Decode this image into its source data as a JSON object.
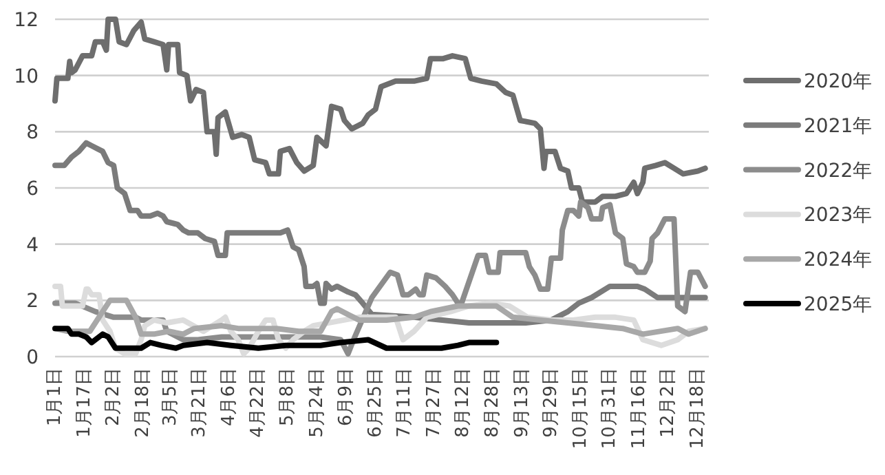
{
  "chart_data": {
    "type": "line",
    "xlim": [
      "--01-01",
      "--12-24"
    ],
    "ylim": [
      0,
      12
    ],
    "yticks": [
      0,
      2,
      4,
      6,
      8,
      10,
      12
    ],
    "xticks": [
      {
        "value": "--01-01",
        "label": "1月1日"
      },
      {
        "value": "--01-17",
        "label": "1月17日"
      },
      {
        "value": "--02-02",
        "label": "2月2日"
      },
      {
        "value": "--02-18",
        "label": "2月18日"
      },
      {
        "value": "--03-05",
        "label": "3月5日"
      },
      {
        "value": "--03-21",
        "label": "3月21日"
      },
      {
        "value": "--04-06",
        "label": "4月6日"
      },
      {
        "value": "--04-22",
        "label": "4月22日"
      },
      {
        "value": "--05-08",
        "label": "5月8日"
      },
      {
        "value": "--05-24",
        "label": "5月24日"
      },
      {
        "value": "--06-09",
        "label": "6月9日"
      },
      {
        "value": "--06-25",
        "label": "6月25日"
      },
      {
        "value": "--07-11",
        "label": "7月11日"
      },
      {
        "value": "--07-27",
        "label": "7月27日"
      },
      {
        "value": "--08-12",
        "label": "8月12日"
      },
      {
        "value": "--08-28",
        "label": "8月28日"
      },
      {
        "value": "--09-13",
        "label": "9月13日"
      },
      {
        "value": "--09-29",
        "label": "9月29日"
      },
      {
        "value": "--10-15",
        "label": "10月15日"
      },
      {
        "value": "--10-31",
        "label": "10月31日"
      },
      {
        "value": "--11-16",
        "label": "11月16日"
      },
      {
        "value": "--12-02",
        "label": "12月2日"
      },
      {
        "value": "--12-18",
        "label": "12月18日"
      }
    ],
    "grid": "y",
    "legend": "right",
    "series": [
      {
        "name": "2020年",
        "color": "#6e6e6e",
        "x": [
          "--01-01",
          "--01-02",
          "--01-08",
          "--01-09",
          "--01-10",
          "--01-12",
          "--01-16",
          "--01-21",
          "--01-23",
          "--01-27",
          "--01-29",
          "--01-30",
          "--02-03",
          "--02-05",
          "--02-09",
          "--02-13",
          "--02-17",
          "--02-19",
          "--02-24",
          "--03-01",
          "--03-03",
          "--03-04",
          "--03-09",
          "--03-10",
          "--03-14",
          "--03-16",
          "--03-19",
          "--03-23",
          "--03-25",
          "--03-29",
          "--03-30",
          "--03-31",
          "--04-04",
          "--04-08",
          "--04-13",
          "--04-17",
          "--04-20",
          "--04-26",
          "--04-28",
          "--05-03",
          "--05-04",
          "--05-09",
          "--05-13",
          "--05-17",
          "--05-22",
          "--05-24",
          "--05-29",
          "--06-01",
          "--06-06",
          "--06-08",
          "--06-12",
          "--06-18",
          "--06-21",
          "--06-25",
          "--06-28",
          "--07-06",
          "--07-16",
          "--07-23",
          "--07-25",
          "--08-01",
          "--08-06",
          "--08-13",
          "--08-16",
          "--08-22",
          "--08-30",
          "--09-04",
          "--09-08",
          "--09-12",
          "--09-20",
          "--09-23",
          "--09-25",
          "--09-26",
          "--10-01",
          "--10-04",
          "--10-08",
          "--10-10",
          "--10-14",
          "--10-16",
          "--10-23",
          "--10-27",
          "--11-03",
          "--11-09",
          "--11-13",
          "--11-15",
          "--11-18",
          "--11-19",
          "--11-25",
          "--11-30",
          "--12-05",
          "--12-10",
          "--12-18",
          "--12-22"
        ],
        "values": [
          9.1,
          9.9,
          9.9,
          10.5,
          10.1,
          10.2,
          10.7,
          10.7,
          11.2,
          11.2,
          10.9,
          12.0,
          12.0,
          11.2,
          11.1,
          11.6,
          11.9,
          11.3,
          11.2,
          11.1,
          10.2,
          11.1,
          11.1,
          10.1,
          10.0,
          9.1,
          9.5,
          9.4,
          8.0,
          8.0,
          7.2,
          8.5,
          8.7,
          7.8,
          7.9,
          7.8,
          7.0,
          6.9,
          6.5,
          6.5,
          7.3,
          7.4,
          6.9,
          6.6,
          6.8,
          7.8,
          7.5,
          8.9,
          8.8,
          8.4,
          8.1,
          8.3,
          8.6,
          8.8,
          9.6,
          9.8,
          9.8,
          9.9,
          10.6,
          10.6,
          10.7,
          10.6,
          9.9,
          9.8,
          9.7,
          9.4,
          9.3,
          8.4,
          8.3,
          8.1,
          6.7,
          7.3,
          7.3,
          6.7,
          6.6,
          6.0,
          6.0,
          5.5,
          5.5,
          5.7,
          5.7,
          5.8,
          6.2,
          5.8,
          6.2,
          6.7,
          6.8,
          6.9,
          6.7,
          6.5,
          6.6,
          6.7
        ]
      },
      {
        "name": "2021年",
        "color": "#7b7b7b",
        "x": [
          "--01-01",
          "--01-06",
          "--01-10",
          "--01-14",
          "--01-18",
          "--01-21",
          "--01-24",
          "--01-27",
          "--01-30",
          "--02-02",
          "--02-04",
          "--02-08",
          "--02-11",
          "--02-15",
          "--02-17",
          "--02-22",
          "--02-26",
          "--03-01",
          "--03-03",
          "--03-09",
          "--03-12",
          "--03-15",
          "--03-20",
          "--03-24",
          "--03-29",
          "--03-31",
          "--04-04",
          "--04-05",
          "--04-14",
          "--05-04",
          "--05-08",
          "--05-11",
          "--05-14",
          "--05-17",
          "--05-18",
          "--05-22",
          "--05-24",
          "--05-26",
          "--05-28",
          "--05-29",
          "--06-01",
          "--06-04",
          "--06-10",
          "--06-14",
          "--06-18",
          "--06-23",
          "--07-16",
          "--08-15",
          "--09-15",
          "--09-29",
          "--10-08",
          "--10-14",
          "--10-21",
          "--10-31",
          "--11-15",
          "--11-19",
          "--11-26",
          "--12-22"
        ],
        "values": [
          6.8,
          6.8,
          7.1,
          7.3,
          7.6,
          7.5,
          7.4,
          7.3,
          6.9,
          6.8,
          6.0,
          5.8,
          5.2,
          5.2,
          5.0,
          5.0,
          5.1,
          5.0,
          4.8,
          4.7,
          4.5,
          4.4,
          4.4,
          4.2,
          4.1,
          3.6,
          3.6,
          4.4,
          4.4,
          4.4,
          4.5,
          3.9,
          3.8,
          3.2,
          2.5,
          2.5,
          2.6,
          1.9,
          1.9,
          2.6,
          2.4,
          2.5,
          2.3,
          2.2,
          1.9,
          1.5,
          1.4,
          1.2,
          1.2,
          1.3,
          1.6,
          1.9,
          2.1,
          2.5,
          2.5,
          2.4,
          2.1,
          2.1
        ]
      },
      {
        "name": "2022年",
        "color": "#8c8c8c",
        "x": [
          "--01-01",
          "--01-12",
          "--01-23",
          "--02-02",
          "--02-14",
          "--02-17",
          "--03-01",
          "--03-03",
          "--03-12",
          "--03-20",
          "--04-02",
          "--05-02",
          "--05-26",
          "--06-06",
          "--06-10",
          "--06-13",
          "--06-23",
          "--07-03",
          "--07-07",
          "--07-10",
          "--07-13",
          "--07-17",
          "--07-19",
          "--07-21",
          "--07-23",
          "--07-28",
          "--08-02",
          "--08-06",
          "--08-09",
          "--08-11",
          "--08-20",
          "--08-24",
          "--08-26",
          "--08-31",
          "--09-01",
          "--09-15",
          "--09-17",
          "--09-20",
          "--09-23",
          "--09-27",
          "--09-29",
          "--10-04",
          "--10-05",
          "--10-08",
          "--10-11",
          "--10-14",
          "--10-15",
          "--10-19",
          "--10-21",
          "--10-26",
          "--10-27",
          "--10-31",
          "--11-03",
          "--11-07",
          "--11-09",
          "--11-13",
          "--11-15",
          "--11-19",
          "--11-22",
          "--11-23",
          "--11-26",
          "--11-30",
          "--12-05",
          "--12-07",
          "--12-11",
          "--12-14",
          "--12-18",
          "--12-22"
        ],
        "values": [
          1.9,
          1.9,
          1.6,
          1.4,
          1.4,
          1.3,
          1.3,
          0.9,
          0.6,
          0.6,
          0.7,
          0.7,
          0.7,
          0.6,
          0.1,
          0.6,
          2.1,
          3.0,
          2.9,
          2.2,
          2.2,
          2.4,
          2.2,
          2.2,
          2.9,
          2.8,
          2.5,
          2.2,
          1.9,
          1.9,
          3.6,
          3.6,
          3.0,
          3.0,
          3.7,
          3.7,
          3.2,
          2.9,
          2.4,
          2.4,
          3.5,
          3.5,
          4.5,
          5.2,
          5.2,
          5.0,
          5.5,
          5.3,
          4.9,
          4.9,
          5.3,
          5.4,
          4.4,
          4.2,
          3.3,
          3.2,
          3.0,
          3.0,
          3.4,
          4.2,
          4.4,
          4.9,
          4.9,
          1.8,
          1.6,
          3.0,
          3.0,
          2.5
        ]
      },
      {
        "name": "2023年",
        "color": "#dcdcdc",
        "x": [
          "--01-01",
          "--01-04",
          "--01-05",
          "--01-16",
          "--01-18",
          "--01-19",
          "--01-21",
          "--01-25",
          "--01-27",
          "--01-31",
          "--02-03",
          "--02-08",
          "--02-14",
          "--02-17",
          "--02-19",
          "--02-24",
          "--03-03",
          "--03-12",
          "--03-23",
          "--04-02",
          "--04-04",
          "--04-07",
          "--04-11",
          "--04-14",
          "--04-17",
          "--04-22",
          "--04-26",
          "--04-30",
          "--05-03",
          "--05-07",
          "--05-11",
          "--05-17",
          "--05-22",
          "--06-16",
          "--07-06",
          "--07-10",
          "--07-16",
          "--07-23",
          "--08-05",
          "--08-15",
          "--08-27",
          "--09-06",
          "--09-16",
          "--09-29",
          "--10-11",
          "--10-23",
          "--11-03",
          "--11-13",
          "--11-18",
          "--11-28",
          "--12-07",
          "--12-13",
          "--12-22"
        ],
        "values": [
          2.5,
          2.5,
          1.8,
          1.8,
          2.4,
          2.4,
          2.2,
          2.2,
          1.3,
          0.9,
          0.3,
          0.1,
          0.1,
          0.6,
          1.1,
          1.3,
          1.2,
          1.3,
          0.9,
          1.3,
          1.4,
          0.9,
          0.6,
          0.1,
          0.3,
          0.9,
          1.3,
          1.3,
          0.6,
          0.3,
          0.6,
          0.9,
          1.1,
          1.4,
          1.4,
          0.6,
          0.9,
          1.4,
          1.6,
          1.8,
          1.9,
          1.8,
          1.4,
          1.3,
          1.3,
          1.4,
          1.4,
          1.3,
          0.6,
          0.4,
          0.6,
          0.9,
          1.0
        ]
      },
      {
        "name": "2024年",
        "color": "#a8a8a8",
        "x": [
          "--01-01",
          "--01-08",
          "--01-20",
          "--01-27",
          "--01-31",
          "--02-09",
          "--02-14",
          "--02-17",
          "--02-24",
          "--03-04",
          "--03-12",
          "--03-18",
          "--04-02",
          "--04-11",
          "--05-02",
          "--05-14",
          "--05-26",
          "--06-01",
          "--06-04",
          "--06-16",
          "--07-01",
          "--07-16",
          "--07-25",
          "--08-09",
          "--08-20",
          "--08-30",
          "--09-08",
          "--09-23",
          "--10-08",
          "--10-23",
          "--11-07",
          "--11-18",
          "--12-07",
          "--12-13",
          "--12-22"
        ],
        "values": [
          1.0,
          0.9,
          0.9,
          1.6,
          2.0,
          2.0,
          1.4,
          0.8,
          0.8,
          0.9,
          0.8,
          1.0,
          1.1,
          1.0,
          1.0,
          0.9,
          0.9,
          1.6,
          1.7,
          1.3,
          1.3,
          1.4,
          1.6,
          1.8,
          1.8,
          1.8,
          1.4,
          1.3,
          1.2,
          1.1,
          1.0,
          0.8,
          1.0,
          0.8,
          1.0
        ]
      },
      {
        "name": "2025年",
        "color": "#000000",
        "x": [
          "--01-01",
          "--01-08",
          "--01-10",
          "--01-14",
          "--01-18",
          "--01-21",
          "--01-27",
          "--01-30",
          "--02-03",
          "--02-09",
          "--02-17",
          "--02-22",
          "--02-28",
          "--03-08",
          "--03-12",
          "--03-25",
          "--04-07",
          "--04-22",
          "--05-07",
          "--05-26",
          "--06-06",
          "--06-21",
          "--07-01",
          "--07-16",
          "--07-31",
          "--08-09",
          "--08-15",
          "--08-30"
        ],
        "values": [
          1.0,
          1.0,
          0.8,
          0.8,
          0.7,
          0.5,
          0.8,
          0.7,
          0.3,
          0.3,
          0.3,
          0.5,
          0.4,
          0.3,
          0.4,
          0.5,
          0.4,
          0.3,
          0.4,
          0.4,
          0.5,
          0.6,
          0.3,
          0.3,
          0.3,
          0.4,
          0.5,
          0.5
        ]
      }
    ]
  }
}
